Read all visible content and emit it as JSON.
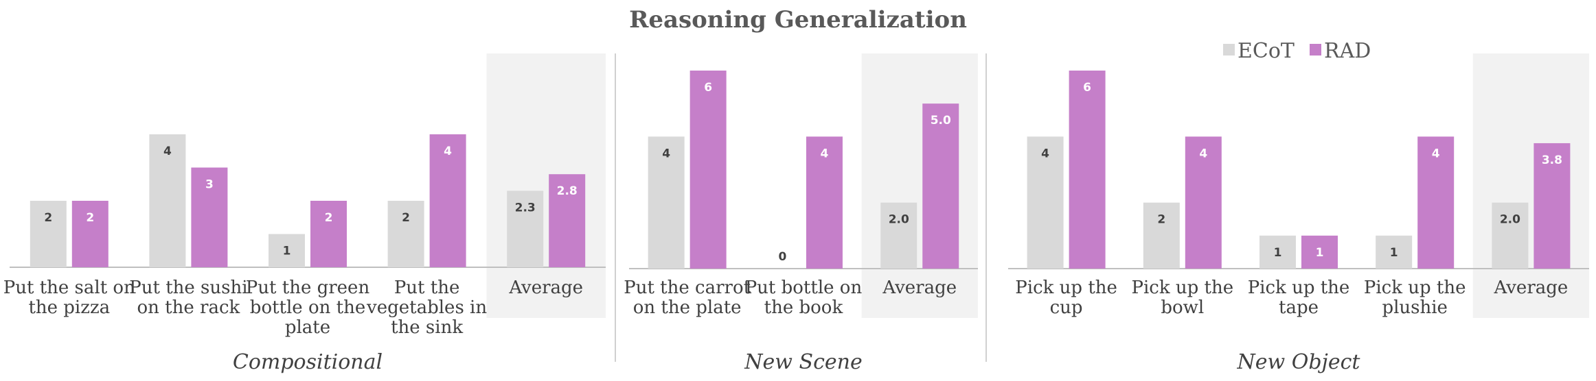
{
  "chart_data": {
    "type": "bar",
    "title": "Reasoning Generalization",
    "legend": {
      "placement": "top-right",
      "entries": [
        "ECoT",
        "RAD"
      ]
    },
    "colors": {
      "ECoT": "#d9d9d9",
      "RAD": "#c57fc9",
      "average_bg": "#f2f2f2",
      "axis": "#bfbfbf",
      "divider": "#d0d0d0"
    },
    "ylim": [
      0,
      6
    ],
    "panels": [
      {
        "name": "Compositional",
        "categories": [
          [
            "Put the salt on",
            "the pizza"
          ],
          [
            "Put the sushi",
            "on the rack"
          ],
          [
            "Put the green",
            "bottle on the",
            "plate"
          ],
          [
            "Put the",
            "vegetables in",
            "the sink"
          ],
          [
            "Average"
          ]
        ],
        "series": [
          {
            "name": "ECoT",
            "values": [
              2,
              4,
              1,
              2,
              2.3
            ],
            "labels": [
              "2",
              "4",
              "1",
              "2",
              "2.3"
            ]
          },
          {
            "name": "RAD",
            "values": [
              2,
              3,
              2,
              4,
              2.8
            ],
            "labels": [
              "2",
              "3",
              "2",
              "4",
              "2.8"
            ]
          }
        ]
      },
      {
        "name": "New Scene",
        "categories": [
          [
            "Put the carrot",
            "on the plate"
          ],
          [
            "Put bottle on",
            "the book"
          ],
          [
            "Average"
          ]
        ],
        "series": [
          {
            "name": "ECoT",
            "values": [
              4,
              0,
              2.0
            ],
            "labels": [
              "4",
              "0",
              "2.0"
            ]
          },
          {
            "name": "RAD",
            "values": [
              6,
              4,
              5.0
            ],
            "labels": [
              "6",
              "4",
              "5.0"
            ]
          }
        ]
      },
      {
        "name": "New Object",
        "categories": [
          [
            "Pick up the",
            "cup"
          ],
          [
            "Pick up the",
            "bowl"
          ],
          [
            "Pick up the",
            "tape"
          ],
          [
            "Pick up the",
            "plushie"
          ],
          [
            "Average"
          ]
        ],
        "series": [
          {
            "name": "ECoT",
            "values": [
              4,
              2,
              1,
              1,
              2.0
            ],
            "labels": [
              "4",
              "2",
              "1",
              "1",
              "2.0"
            ]
          },
          {
            "name": "RAD",
            "values": [
              6,
              4,
              1,
              4,
              3.8
            ],
            "labels": [
              "6",
              "4",
              "1",
              "4",
              "3.8"
            ]
          }
        ]
      }
    ]
  }
}
